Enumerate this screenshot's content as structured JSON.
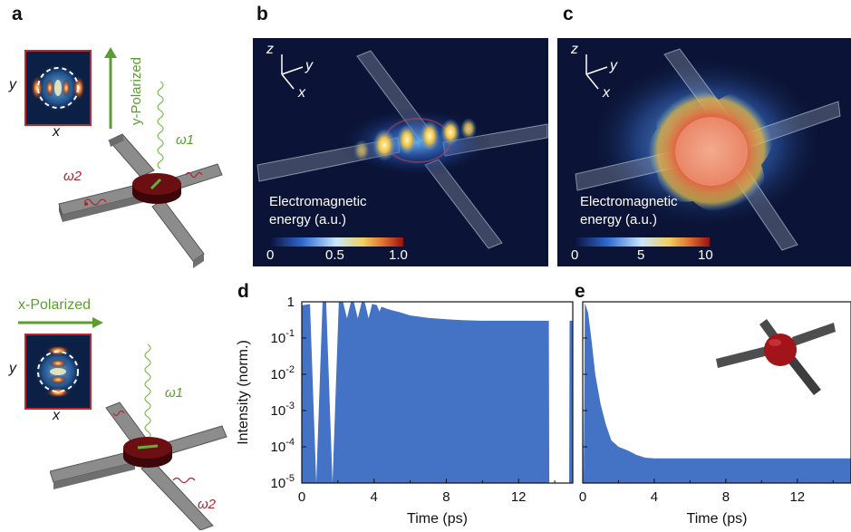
{
  "panel_labels": [
    "a",
    "b",
    "c",
    "d",
    "e"
  ],
  "panel_a": {
    "top": {
      "polarization": "y-Polarized",
      "inset_axis_y": "y",
      "inset_axis_x": "x",
      "omega_in": "ω1",
      "omega_out": "ω2"
    },
    "bottom": {
      "polarization": "x-Polarized",
      "inset_axis_y": "y",
      "inset_axis_x": "x",
      "omega_in": "ω1",
      "omega_out": "ω2"
    },
    "colors": {
      "polarized_green": "#5a9e2f",
      "omega_out_red": "#b1232c",
      "disk_red": "#6b0f12"
    }
  },
  "panel_b": {
    "axes": {
      "z": "z",
      "y": "y",
      "x": "x"
    },
    "colorbar_title_line1": "Electromagnetic",
    "colorbar_title_line2": "energy (a.u.)",
    "colorbar_ticks": [
      "0",
      "0.5",
      "1.0"
    ]
  },
  "panel_c": {
    "axes": {
      "z": "z",
      "y": "y",
      "x": "x"
    },
    "colorbar_title_line1": "Electromagnetic",
    "colorbar_title_line2": "energy (a.u.)",
    "colorbar_ticks": [
      "0",
      "5",
      "10"
    ]
  },
  "chart_data": [
    {
      "type": "area",
      "panel": "d",
      "xlabel": "Time (ps)",
      "ylabel": "Intensity (norm.)",
      "xlim": [
        0,
        15
      ],
      "ylim": [
        1e-05,
        1
      ],
      "yscale": "log",
      "xticks": [
        "0",
        "4",
        "8",
        "12"
      ],
      "yticks": [
        "10-5",
        "10-4",
        "10-3",
        "10-2",
        "10-1",
        "1"
      ],
      "series_color": "#4472c4",
      "envelope": {
        "x": [
          0.0,
          1.3,
          1.8,
          2.5,
          3.0,
          3.6,
          4.2,
          4.8,
          5.4,
          6.0,
          7.0,
          8.0,
          9.0,
          10.0,
          11.0,
          12.0,
          13.5,
          13.6,
          13.7,
          15.0
        ],
        "y": [
          0.8,
          1.0,
          1.0,
          1.0,
          1.0,
          0.95,
          0.8,
          0.62,
          0.52,
          0.42,
          0.36,
          0.33,
          0.31,
          0.3,
          0.3,
          0.3,
          0.3,
          0.3,
          0.3,
          0.3
        ]
      },
      "dips": {
        "x": [
          0.8,
          1.7
        ],
        "y": [
          1e-05,
          1e-05
        ]
      },
      "gap": [
        13.7,
        14.8
      ]
    },
    {
      "type": "area",
      "panel": "e",
      "xlabel": "Time (ps)",
      "ylabel": "",
      "xlim": [
        0,
        15
      ],
      "ylim": [
        1e-05,
        1
      ],
      "yscale": "log",
      "xticks": [
        "0",
        "4",
        "8",
        "12"
      ],
      "series_color": "#4472c4",
      "envelope": {
        "x": [
          0.0,
          0.1,
          0.3,
          0.5,
          0.7,
          1.0,
          1.3,
          1.6,
          2.0,
          2.5,
          3.0,
          3.5,
          4.0,
          6.0,
          8.0,
          10.0,
          12.0,
          15.0
        ],
        "y": [
          1.0,
          1.0,
          0.5,
          0.08,
          0.01,
          0.0015,
          0.0004,
          0.00015,
          0.0001,
          8e-05,
          6e-05,
          5e-05,
          4.8e-05,
          4.8e-05,
          4.8e-05,
          4.8e-05,
          4.8e-05,
          4.8e-05
        ]
      },
      "start_dip": {
        "x": 0.0,
        "y": 1e-05
      }
    }
  ]
}
